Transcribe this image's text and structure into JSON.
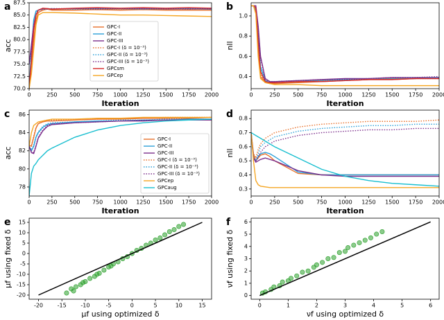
{
  "chart_data": [
    {
      "type": "line",
      "label": "a",
      "xlabel": "Iteration",
      "ylabel": "acc",
      "legend": "center",
      "x": [
        0,
        25,
        50,
        75,
        100,
        150,
        200,
        250,
        500,
        750,
        1000,
        1250,
        1500,
        1750,
        2000
      ],
      "xlim": [
        0,
        2000
      ],
      "xticks": [
        0,
        250,
        500,
        750,
        1000,
        1250,
        1500,
        1750,
        2000
      ],
      "ylim": [
        70,
        87.5
      ],
      "yticks": [
        {
          "value": 70,
          "label": "70.0"
        },
        72.5,
        {
          "value": 75,
          "label": "75.0"
        },
        77.5,
        {
          "value": 80,
          "label": "80.0"
        },
        82.5,
        {
          "value": 85,
          "label": "85.0"
        },
        87.5
      ],
      "series": [
        {
          "name": "GPC-I",
          "color": "#e8702a",
          "style": "solid",
          "values": [
            70,
            75,
            80,
            84,
            85.5,
            86,
            86.2,
            86,
            86,
            86.1,
            86,
            86.1,
            86,
            86,
            86
          ]
        },
        {
          "name": "GPC-II",
          "color": "#2b9fd8",
          "style": "solid",
          "values": [
            70,
            78,
            84,
            85.8,
            86,
            86.3,
            86.2,
            86.2,
            86.3,
            86.3,
            86.3,
            86.3,
            86.3,
            86.3,
            86.3
          ]
        },
        {
          "name": "GPC-III",
          "color": "#7b2d8b",
          "style": "solid",
          "values": [
            75,
            79,
            83,
            85,
            86,
            86.3,
            86.3,
            86.2,
            86.3,
            86.4,
            86.3,
            86.3,
            86.2,
            86.3,
            86.2
          ]
        },
        {
          "name": "GPC-I (δ = 10⁻³)",
          "color": "#e8702a",
          "style": "dotted",
          "values": [
            70,
            74,
            79,
            83.5,
            85.5,
            86.1,
            86.2,
            86.1,
            86.2,
            86.1,
            86.2,
            86.1,
            86.2,
            86.1,
            86.1
          ]
        },
        {
          "name": "GPC-II (δ = 10⁻³)",
          "color": "#2b9fd8",
          "style": "dotted",
          "values": [
            70,
            77,
            83,
            85.5,
            86,
            86.2,
            86.3,
            86.3,
            86.2,
            86.3,
            86.3,
            86.2,
            86.3,
            86.3,
            86.2
          ]
        },
        {
          "name": "GPC-III (δ = 10⁻³)",
          "color": "#7b2d8b",
          "style": "dotted",
          "values": [
            75,
            78,
            82.5,
            85,
            85.9,
            86.2,
            86.2,
            86.3,
            86.3,
            86.2,
            86.3,
            86.3,
            86.3,
            86.2,
            86.3
          ]
        },
        {
          "name": "GPCsm",
          "color": "#d62728",
          "style": "solid",
          "values": [
            70,
            76,
            82,
            85,
            86,
            86.4,
            86.3,
            86.2,
            86.4,
            86.5,
            86.4,
            86.5,
            86.4,
            86.5,
            86.4
          ]
        },
        {
          "name": "GPCep",
          "color": "#f5a623",
          "style": "solid",
          "values": [
            70,
            73,
            78,
            83,
            85,
            85.5,
            85.5,
            85.5,
            85.4,
            85.2,
            85,
            85,
            84.9,
            84.8,
            84.7
          ]
        }
      ]
    },
    {
      "type": "line",
      "label": "b",
      "xlabel": "Iteration",
      "ylabel": "nll",
      "x": [
        0,
        25,
        50,
        75,
        100,
        150,
        200,
        250,
        500,
        750,
        1000,
        1250,
        1500,
        1750,
        2000
      ],
      "xlim": [
        0,
        2000
      ],
      "xticks": [
        0,
        250,
        500,
        750,
        1000,
        1250,
        1500,
        1750,
        2000
      ],
      "ylim": [
        0.28,
        1.13
      ],
      "yticks": [
        0.4,
        0.6,
        0.8,
        {
          "value": 1,
          "label": "1.0"
        }
      ],
      "series": [
        {
          "color": "#e8702a",
          "style": "solid",
          "values": [
            1.1,
            1.1,
            1.08,
            0.7,
            0.4,
            0.34,
            0.33,
            0.33,
            0.34,
            0.35,
            0.36,
            0.37,
            0.37,
            0.38,
            0.38
          ]
        },
        {
          "color": "#2b9fd8",
          "style": "solid",
          "values": [
            1.1,
            1.1,
            1.05,
            0.8,
            0.5,
            0.36,
            0.34,
            0.34,
            0.35,
            0.36,
            0.37,
            0.37,
            0.38,
            0.38,
            0.39
          ]
        },
        {
          "color": "#7b2d8b",
          "style": "solid",
          "values": [
            1.1,
            1.1,
            1.1,
            0.9,
            0.6,
            0.38,
            0.35,
            0.35,
            0.36,
            0.37,
            0.38,
            0.38,
            0.39,
            0.39,
            0.39
          ]
        },
        {
          "color": "#e8702a",
          "style": "dotted",
          "values": [
            1.1,
            1.1,
            1.07,
            0.72,
            0.42,
            0.35,
            0.34,
            0.34,
            0.35,
            0.36,
            0.36,
            0.37,
            0.38,
            0.38,
            0.38
          ]
        },
        {
          "color": "#2b9fd8",
          "style": "dotted",
          "values": [
            1.1,
            1.1,
            1.06,
            0.78,
            0.48,
            0.36,
            0.35,
            0.35,
            0.36,
            0.36,
            0.37,
            0.38,
            0.38,
            0.39,
            0.39
          ]
        },
        {
          "color": "#7b2d8b",
          "style": "dotted",
          "values": [
            1.1,
            1.1,
            1.09,
            0.88,
            0.58,
            0.37,
            0.35,
            0.35,
            0.36,
            0.37,
            0.37,
            0.38,
            0.39,
            0.39,
            0.4
          ]
        },
        {
          "color": "#d62728",
          "style": "solid",
          "values": [
            1.1,
            1.1,
            1.08,
            0.75,
            0.45,
            0.35,
            0.34,
            0.34,
            0.35,
            0.35,
            0.36,
            0.37,
            0.37,
            0.38,
            0.38
          ]
        },
        {
          "color": "#f5a623",
          "style": "solid",
          "values": [
            1.1,
            1.1,
            1.02,
            0.6,
            0.38,
            0.34,
            0.33,
            0.32,
            0.32,
            0.31,
            0.31,
            0.31,
            0.31,
            0.31,
            0.31
          ]
        }
      ]
    },
    {
      "type": "line",
      "label": "c",
      "xlabel": "Iteration",
      "ylabel": "acc",
      "legend": "lower right",
      "x": [
        0,
        25,
        50,
        75,
        100,
        150,
        200,
        250,
        500,
        750,
        1000,
        1250,
        1500,
        1750,
        2000
      ],
      "xlim": [
        0,
        2000
      ],
      "xticks": [
        0,
        250,
        500,
        750,
        1000,
        1250,
        1500,
        1750,
        2000
      ],
      "ylim": [
        77,
        86.5
      ],
      "yticks": [
        78,
        80,
        82,
        84,
        86
      ],
      "series": [
        {
          "name": "GPC-I",
          "color": "#e8702a",
          "style": "solid",
          "values": [
            82.6,
            82.5,
            83.5,
            84.5,
            85,
            85.2,
            85.3,
            85.3,
            85.4,
            85.5,
            85.5,
            85.6,
            85.6,
            85.6,
            85.7
          ]
        },
        {
          "name": "GPC-II",
          "color": "#2b9fd8",
          "style": "solid",
          "values": [
            82.5,
            82,
            82.5,
            83.5,
            84,
            84.6,
            84.9,
            85,
            85.2,
            85.3,
            85.3,
            85.4,
            85.4,
            85.5,
            85.5
          ]
        },
        {
          "name": "GPC-III",
          "color": "#7b2d8b",
          "style": "solid",
          "values": [
            82.5,
            81.8,
            81.7,
            82.5,
            83.4,
            84.2,
            84.7,
            84.9,
            85.1,
            85.2,
            85.3,
            85.3,
            85.4,
            85.4,
            85.4
          ]
        },
        {
          "name": "GPC-I (δ = 10⁻³)",
          "color": "#e8702a",
          "style": "dotted",
          "values": [
            82.6,
            82.6,
            83.6,
            84.6,
            85,
            85.3,
            85.4,
            85.4,
            85.5,
            85.5,
            85.6,
            85.6,
            85.7,
            85.7,
            85.7
          ]
        },
        {
          "name": "GPC-II (δ = 10⁻³)",
          "color": "#2b9fd8",
          "style": "dotted",
          "values": [
            82.5,
            82.1,
            82.6,
            83.6,
            84.1,
            84.7,
            85,
            85.1,
            85.2,
            85.3,
            85.4,
            85.4,
            85.5,
            85.5,
            85.5
          ]
        },
        {
          "name": "GPC-III (δ = 10⁻³)",
          "color": "#7b2d8b",
          "style": "dotted",
          "values": [
            82.5,
            81.9,
            81.8,
            82.6,
            83.5,
            84.3,
            84.8,
            85,
            85.1,
            85.2,
            85.3,
            85.4,
            85.4,
            85.4,
            85.5
          ]
        },
        {
          "name": "GPCep",
          "color": "#f5a623",
          "style": "solid",
          "values": [
            82.5,
            84,
            84.8,
            85,
            85.2,
            85.3,
            85.4,
            85.5,
            85.5,
            85.6,
            85.6,
            85.7,
            85.7,
            85.7,
            85.7
          ]
        },
        {
          "name": "GPCaug",
          "color": "#17becf",
          "style": "solid",
          "values": [
            77,
            79.5,
            80.3,
            80.6,
            81,
            81.5,
            82,
            82.3,
            83.5,
            84.3,
            84.8,
            85.1,
            85.3,
            85.4,
            85.5
          ]
        }
      ]
    },
    {
      "type": "line",
      "label": "d",
      "xlabel": "Iteration",
      "ylabel": "nll",
      "x": [
        0,
        25,
        50,
        75,
        100,
        150,
        200,
        250,
        500,
        750,
        1000,
        1250,
        1500,
        1750,
        2000
      ],
      "xlim": [
        0,
        2000
      ],
      "xticks": [
        0,
        250,
        500,
        750,
        1000,
        1250,
        1500,
        1750,
        2000
      ],
      "ylim": [
        0.25,
        0.86
      ],
      "yticks": [
        0.3,
        0.4,
        0.5,
        0.6,
        0.7,
        0.8
      ],
      "series": [
        {
          "color": "#e8702a",
          "style": "solid",
          "values": [
            0.7,
            0.55,
            0.5,
            0.52,
            0.54,
            0.55,
            0.53,
            0.5,
            0.41,
            0.4,
            0.4,
            0.4,
            0.4,
            0.4,
            0.4
          ]
        },
        {
          "color": "#2b9fd8",
          "style": "solid",
          "values": [
            0.7,
            0.52,
            0.5,
            0.53,
            0.55,
            0.56,
            0.55,
            0.53,
            0.42,
            0.4,
            0.4,
            0.4,
            0.4,
            0.4,
            0.4
          ]
        },
        {
          "color": "#7b2d8b",
          "style": "solid",
          "values": [
            0.7,
            0.52,
            0.49,
            0.5,
            0.51,
            0.52,
            0.51,
            0.5,
            0.43,
            0.4,
            0.39,
            0.39,
            0.39,
            0.39,
            0.39
          ]
        },
        {
          "color": "#e8702a",
          "style": "dotted",
          "values": [
            0.7,
            0.55,
            0.52,
            0.58,
            0.62,
            0.66,
            0.68,
            0.7,
            0.74,
            0.76,
            0.77,
            0.78,
            0.78,
            0.78,
            0.79
          ]
        },
        {
          "color": "#2b9fd8",
          "style": "dotted",
          "values": [
            0.7,
            0.53,
            0.5,
            0.55,
            0.6,
            0.63,
            0.65,
            0.67,
            0.71,
            0.73,
            0.74,
            0.75,
            0.75,
            0.76,
            0.76
          ]
        },
        {
          "color": "#7b2d8b",
          "style": "dotted",
          "values": [
            0.7,
            0.52,
            0.5,
            0.53,
            0.56,
            0.6,
            0.62,
            0.64,
            0.68,
            0.7,
            0.71,
            0.72,
            0.72,
            0.73,
            0.73
          ]
        },
        {
          "color": "#f5a623",
          "style": "solid",
          "values": [
            0.7,
            0.5,
            0.36,
            0.33,
            0.32,
            0.315,
            0.31,
            0.31,
            0.31,
            0.31,
            0.31,
            0.31,
            0.31,
            0.31,
            0.31
          ]
        },
        {
          "color": "#17becf",
          "style": "solid",
          "values": [
            0.7,
            0.69,
            0.68,
            0.67,
            0.66,
            0.64,
            0.62,
            0.6,
            0.52,
            0.44,
            0.39,
            0.36,
            0.34,
            0.33,
            0.32
          ]
        }
      ]
    },
    {
      "type": "scatter",
      "label": "e",
      "xlabel": "μf using optimized δ",
      "ylabel": "μf using fixed δ",
      "xlim": [
        -22,
        17
      ],
      "xticks": [
        -20,
        -15,
        -10,
        -5,
        0,
        5,
        10,
        15
      ],
      "ylim": [
        -22,
        17
      ],
      "yticks": [
        -20,
        -15,
        -10,
        -5,
        0,
        5,
        10,
        15
      ],
      "color": "#2ca02c",
      "x": [
        -14,
        -13,
        -12.5,
        -12,
        -11,
        -10.5,
        -10,
        -9,
        -8,
        -7.5,
        -7,
        -6,
        -5,
        -4.5,
        -4,
        -3,
        -2,
        -1,
        0,
        1,
        2,
        3,
        4,
        5,
        6,
        7,
        8,
        9,
        10,
        11
      ],
      "y": [
        -19,
        -17,
        -18,
        -16,
        -15,
        -14,
        -13.5,
        -12,
        -11,
        -10,
        -9.5,
        -8,
        -6.5,
        -6,
        -5,
        -4,
        -2.5,
        -1.5,
        0,
        1.5,
        2.5,
        4,
        5,
        6.5,
        7.5,
        9,
        10.5,
        11.5,
        13,
        14
      ],
      "reference_line": {
        "x": [
          -20,
          15
        ],
        "y": [
          -20,
          15
        ]
      }
    },
    {
      "type": "scatter",
      "label": "f",
      "xlabel": "νf using optimized δ",
      "ylabel": "νf using fixed δ",
      "xlim": [
        -0.3,
        6.3
      ],
      "xticks": [
        0,
        1,
        2,
        3,
        4,
        5,
        6
      ],
      "ylim": [
        -0.3,
        6.3
      ],
      "yticks": [
        0,
        1,
        2,
        3,
        4,
        5,
        6
      ],
      "color": "#2ca02c",
      "x": [
        0.1,
        0.2,
        0.4,
        0.5,
        0.7,
        0.8,
        1,
        1.1,
        1.3,
        1.5,
        1.7,
        1.9,
        2,
        2.2,
        2.4,
        2.6,
        2.8,
        3,
        3.1,
        3.3,
        3.5,
        3.7,
        3.9,
        4.1,
        4.3
      ],
      "y": [
        0.2,
        0.3,
        0.5,
        0.7,
        0.8,
        1.1,
        1.2,
        1.4,
        1.6,
        1.9,
        2,
        2.3,
        2.5,
        2.7,
        3,
        3.1,
        3.5,
        3.6,
        3.9,
        4.1,
        4.3,
        4.5,
        4.7,
        5,
        5.2
      ],
      "reference_line": {
        "x": [
          0,
          6
        ],
        "y": [
          0,
          6
        ]
      }
    }
  ]
}
